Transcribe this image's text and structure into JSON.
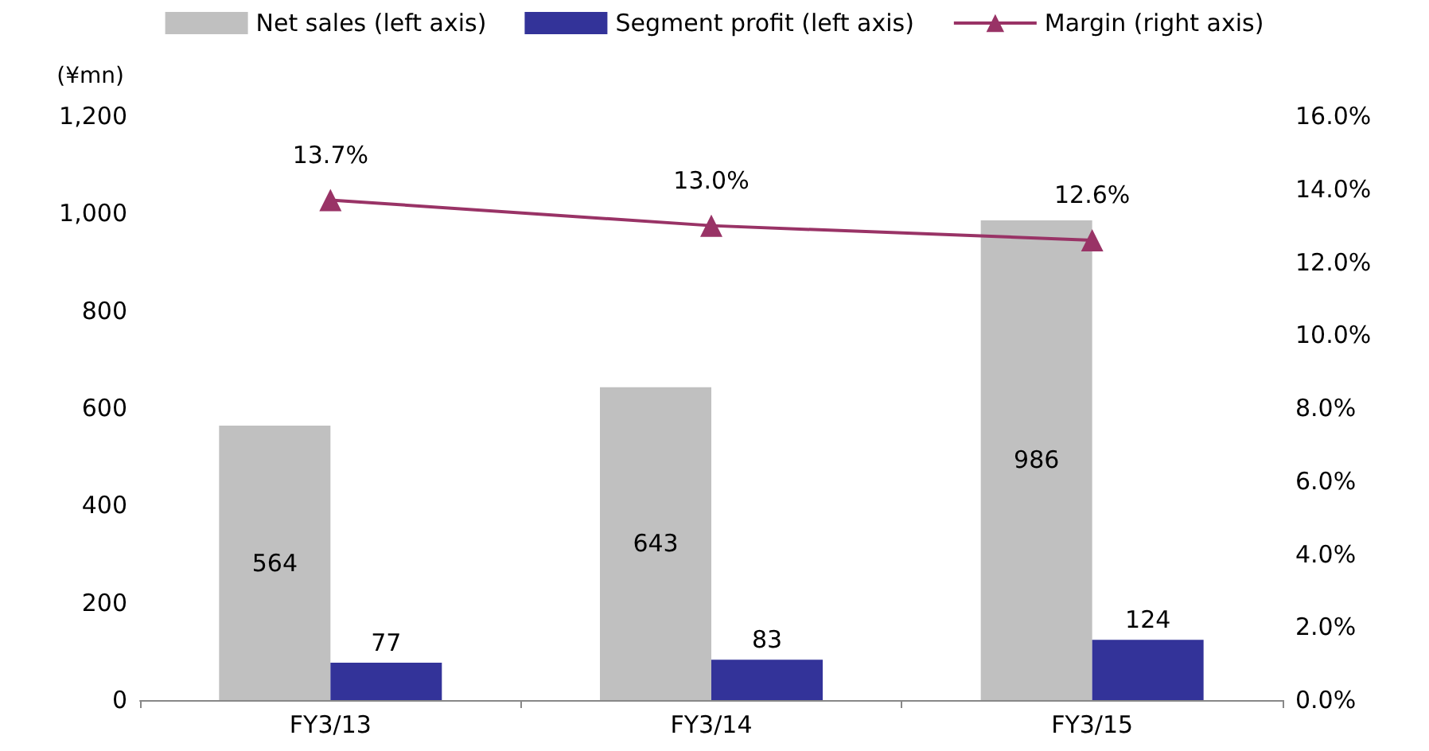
{
  "chart_data": {
    "type": "bar",
    "ylabel": "(¥mn)",
    "categories": [
      "FY3/13",
      "FY3/14",
      "FY3/15"
    ],
    "series": [
      {
        "name": "Net sales (left axis)",
        "color": "#c0c0c0",
        "values": [
          564,
          643,
          986
        ],
        "value_labels": [
          "564",
          "643",
          "986"
        ]
      },
      {
        "name": "Segment profit (left axis)",
        "color": "#333399",
        "values": [
          77,
          83,
          124
        ],
        "value_labels": [
          "77",
          "83",
          "124"
        ]
      },
      {
        "name": "Margin (right axis)",
        "type": "line",
        "axis": "y2",
        "color": "#993366",
        "values": [
          13.7,
          13.0,
          12.6
        ],
        "value_labels": [
          "13.7%",
          "13.0%",
          "12.6%"
        ],
        "marker": "triangle"
      }
    ],
    "ylim": [
      0,
      1200
    ],
    "yticks": [
      {
        "value": 0,
        "label": "0"
      },
      {
        "value": 200,
        "label": "200"
      },
      {
        "value": 400,
        "label": "400"
      },
      {
        "value": 600,
        "label": "600"
      },
      {
        "value": 800,
        "label": "800"
      },
      {
        "value": 1000,
        "label": "1,000"
      },
      {
        "value": 1200,
        "label": "1,200"
      }
    ],
    "y2lim": [
      0,
      16
    ],
    "y2ticks": [
      {
        "value": 0,
        "label": "0.0%"
      },
      {
        "value": 2,
        "label": "2.0%"
      },
      {
        "value": 4,
        "label": "4.0%"
      },
      {
        "value": 6,
        "label": "6.0%"
      },
      {
        "value": 8,
        "label": "8.0%"
      },
      {
        "value": 10,
        "label": "10.0%"
      },
      {
        "value": 12,
        "label": "12.0%"
      },
      {
        "value": 14,
        "label": "14.0%"
      },
      {
        "value": 16,
        "label": "16.0%"
      }
    ],
    "grid": false,
    "legend": "top"
  }
}
